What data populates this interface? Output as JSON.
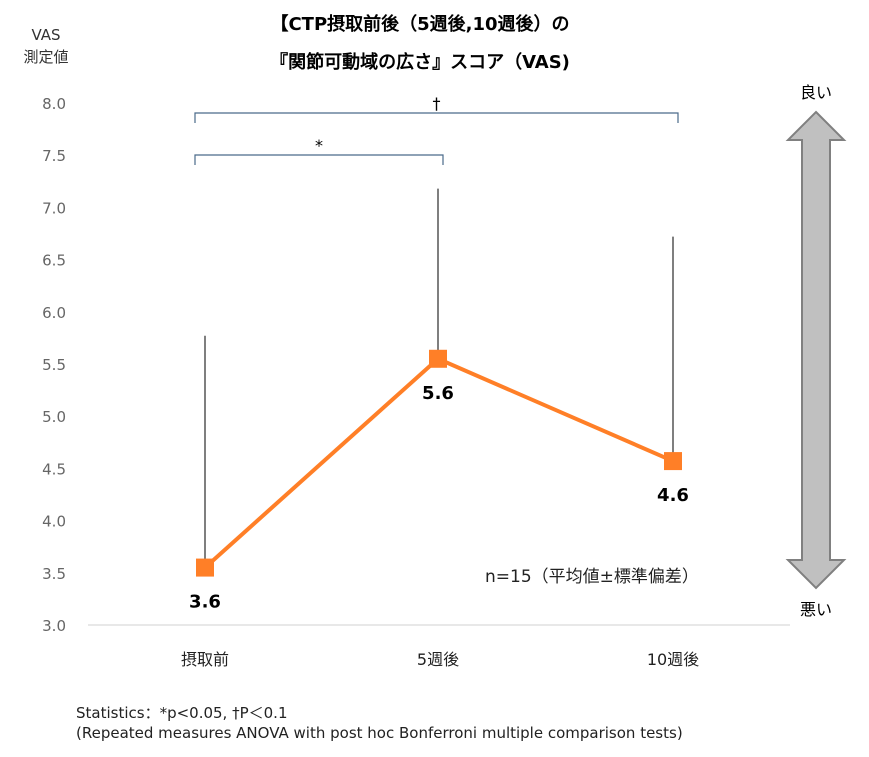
{
  "chart_data": {
    "type": "line",
    "title_line1": "【CTP摂取前後（5週後,10週後）の",
    "title_line2": "『関節可動域の広さ』スコア（VAS)",
    "ylabel_line1": "VAS",
    "ylabel_line2": "測定値",
    "ylim": [
      3.0,
      8.0
    ],
    "yticks": [
      "3.0",
      "3.5",
      "4.0",
      "4.5",
      "5.0",
      "5.5",
      "6.0",
      "6.5",
      "7.0",
      "7.5",
      "8.0"
    ],
    "categories": [
      "摂取前",
      "5週後",
      "10週後"
    ],
    "series": [
      {
        "values": [
          3.55,
          5.55,
          4.57
        ],
        "error_upper": [
          5.77,
          7.18,
          6.72
        ],
        "data_labels": [
          "3.6",
          "5.6",
          "4.6"
        ],
        "color": "#FF7F27"
      }
    ],
    "significance": [
      {
        "from": "摂取前",
        "to": "5週後",
        "mark": "*"
      },
      {
        "from": "摂取前",
        "to": "10週後",
        "mark": "†"
      }
    ],
    "annotation": "n=15（平均値±標準偏差）",
    "arrow_top_label": "良い",
    "arrow_bottom_label": "悪い",
    "grid": false
  },
  "footer": {
    "line1": "Statistics：*p<0.05, †P＜0.1",
    "line2": "(Repeated measures ANOVA with post hoc Bonferroni multiple comparison tests)"
  }
}
